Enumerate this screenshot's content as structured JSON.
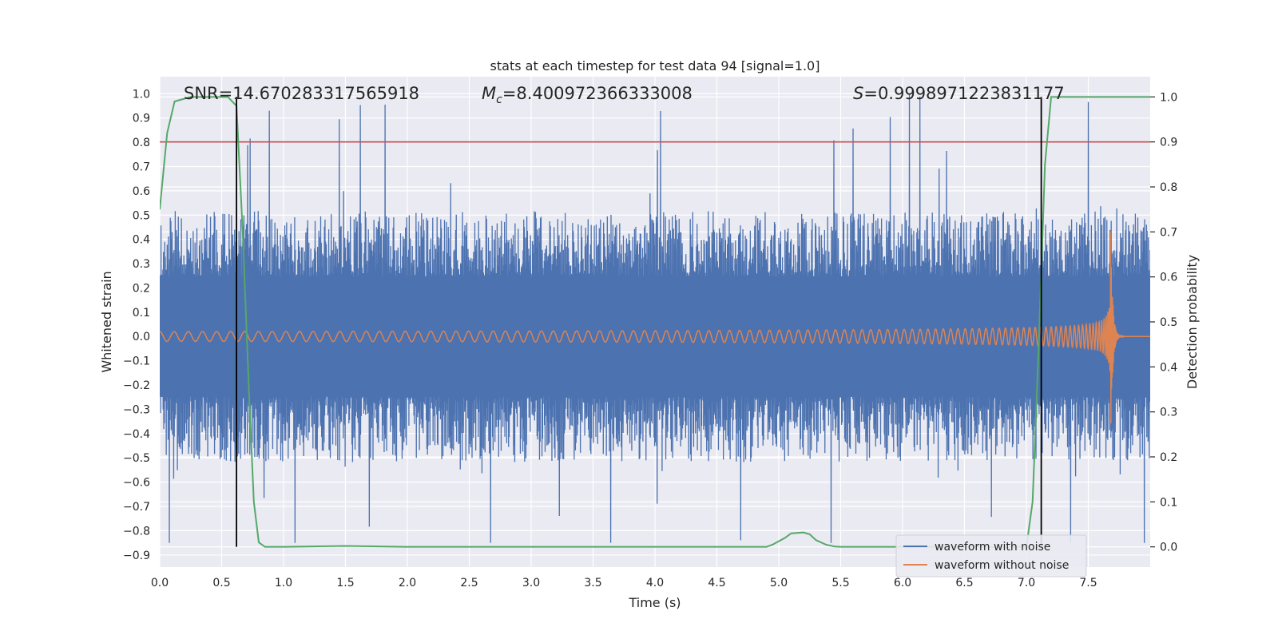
{
  "chart_data": {
    "type": "line",
    "title": "stats at each timestep for test data 94 [signal=1.0]",
    "xlabel": "Time (s)",
    "ylabel_left": "Whitened strain",
    "ylabel_right": "Detection probability",
    "xlim": [
      0.0,
      8.0
    ],
    "ylim_left": [
      -0.95,
      1.07
    ],
    "ylim_right": [
      -0.045,
      1.045
    ],
    "x_ticks": [
      0.0,
      0.5,
      1.0,
      1.5,
      2.0,
      2.5,
      3.0,
      3.5,
      4.0,
      4.5,
      5.0,
      5.5,
      6.0,
      6.5,
      7.0,
      7.5
    ],
    "x_tick_labels": [
      "0.0",
      "0.5",
      "1.0",
      "1.5",
      "2.0",
      "2.5",
      "3.0",
      "3.5",
      "4.0",
      "4.5",
      "5.0",
      "5.5",
      "6.0",
      "6.5",
      "7.0",
      "7.5"
    ],
    "y_left_ticks": [
      -0.9,
      -0.8,
      -0.7,
      -0.6,
      -0.5,
      -0.4,
      -0.3,
      -0.2,
      -0.1,
      0.0,
      0.1,
      0.2,
      0.3,
      0.4,
      0.5,
      0.6,
      0.7,
      0.8,
      0.9,
      1.0
    ],
    "y_left_tick_labels": [
      "−0.9",
      "−0.8",
      "−0.7",
      "−0.6",
      "−0.5",
      "−0.4",
      "−0.3",
      "−0.2",
      "−0.1",
      "0.0",
      "0.1",
      "0.2",
      "0.3",
      "0.4",
      "0.5",
      "0.6",
      "0.7",
      "0.8",
      "0.9",
      "1.0"
    ],
    "y_right_ticks": [
      0.0,
      0.1,
      0.2,
      0.3,
      0.4,
      0.5,
      0.6,
      0.7,
      0.8,
      0.9,
      1.0
    ],
    "y_right_tick_labels": [
      "0.0",
      "0.1",
      "0.2",
      "0.3",
      "0.4",
      "0.5",
      "0.6",
      "0.7",
      "0.8",
      "0.9",
      "1.0"
    ],
    "grid": true,
    "annotations": {
      "snr": "SNR=14.670283317565918",
      "mc_symbol": "M",
      "mc_sub": "c",
      "mc_value": "=8.400972366333008",
      "s_symbol": "S",
      "s_value": "=0.9998971223831177"
    },
    "threshold_line": {
      "axis": "right",
      "y": 0.9,
      "color": "#c44e52"
    },
    "vertical_markers": [
      0.62,
      7.12
    ],
    "series": [
      {
        "name": "waveform with noise",
        "color": "#4c72b0",
        "axis": "left",
        "description_values": {
          "typical_upper": 0.45,
          "typical_lower": -0.45,
          "max": 1.0,
          "min": -0.85
        }
      },
      {
        "name": "waveform without noise",
        "color": "#dd8452",
        "axis": "left",
        "chirp": {
          "start_amplitude": 0.02,
          "peak_amplitude": 0.43,
          "peak_time": 7.68,
          "start_time": 0.0
        }
      },
      {
        "name": "detection probability",
        "color": "#55a868",
        "axis": "right",
        "x": [
          0.0,
          0.06,
          0.12,
          0.25,
          0.4,
          0.55,
          0.62,
          0.67,
          0.72,
          0.76,
          0.8,
          0.85,
          0.9,
          1.0,
          1.5,
          2.0,
          3.0,
          4.0,
          4.5,
          4.9,
          4.95,
          5.05,
          5.1,
          5.2,
          5.25,
          5.3,
          5.38,
          5.45,
          5.5,
          6.0,
          6.5,
          7.0,
          7.05,
          7.1,
          7.15,
          7.2,
          7.25,
          7.5,
          8.0
        ],
        "y": [
          0.75,
          0.92,
          0.99,
          1.0,
          1.0,
          1.0,
          0.98,
          0.7,
          0.35,
          0.1,
          0.01,
          0.0,
          0.0,
          0.0,
          0.002,
          0.0,
          0.0,
          0.0,
          0.0,
          0.0,
          0.005,
          0.02,
          0.03,
          0.032,
          0.028,
          0.015,
          0.005,
          0.001,
          0.0,
          0.0,
          0.0,
          0.0,
          0.1,
          0.45,
          0.85,
          1.0,
          1.0,
          1.0,
          1.0
        ]
      }
    ],
    "legend": {
      "placement": "lower-right",
      "entries": [
        "waveform with noise",
        "waveform without noise"
      ]
    },
    "colors": {
      "background": "#eaeaf2",
      "grid": "#ffffff",
      "text": "#262626",
      "marker": "#000000"
    }
  }
}
